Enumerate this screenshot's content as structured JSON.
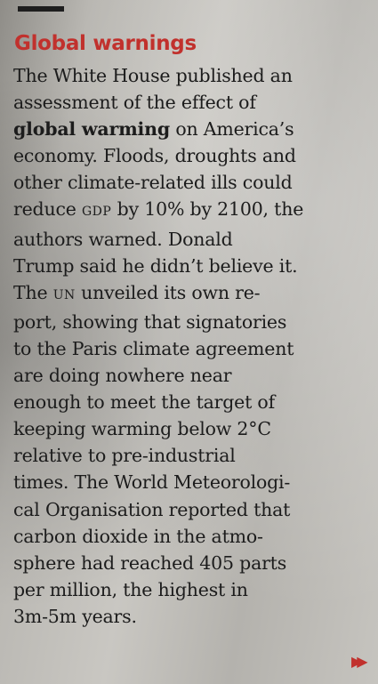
{
  "article": {
    "heading": "Global warnings",
    "lines": [
      "The White House published an",
      "assessment of the effect of",
      [
        "global warming",
        " on America’s"
      ],
      "economy. Floods, droughts and",
      "other climate-related ills could",
      [
        "reduce ",
        "GDP",
        " by 10% by 2100, the"
      ],
      "authors warned. Donald",
      "Trump said he didn’t believe it.",
      [
        "The ",
        "UN",
        " unveiled its own re-"
      ],
      "port, showing that signatories",
      "to the Paris climate agreement",
      "are doing nowhere near",
      "enough to meet the target of",
      "keeping warming below 2°C",
      "relative to pre-industrial",
      "times. The World Meteorologi-",
      "cal Organisation reported that",
      "carbon dioxide in the atmo-",
      "sphere had reached 405 parts",
      "per million, the highest in",
      "3m-5m years."
    ],
    "continue_marker": "▶▶",
    "accent_color": "#c1312d"
  }
}
